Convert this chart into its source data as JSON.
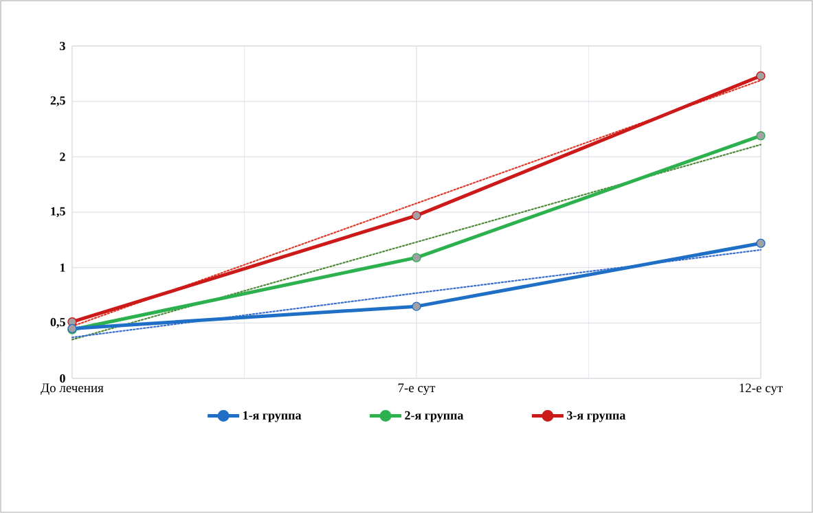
{
  "chart_data": {
    "type": "line",
    "categories": [
      "До лечения",
      "7-е сут",
      "12-е сут"
    ],
    "ylim": [
      0,
      3
    ],
    "yticks": [
      0,
      {
        "value": 0.5,
        "label": "0,5"
      },
      1,
      {
        "value": 1.5,
        "label": "1,5"
      },
      2,
      {
        "value": 2.5,
        "label": "2,5"
      },
      3
    ],
    "grid": true,
    "legend": "bottom",
    "marker": "circle",
    "line_style": "solid",
    "series": [
      {
        "name": "1-я группа",
        "color": "#1f6fc6",
        "values": [
          0.45,
          0.65,
          1.22
        ]
      },
      {
        "name": "2-я группа",
        "color": "#2db14f",
        "values": [
          0.44,
          1.09,
          2.19
        ]
      },
      {
        "name": "3-я группа",
        "color": "#cc1a1a",
        "values": [
          0.51,
          1.47,
          2.73
        ]
      },
      {
        "color": "#3a6fd0",
        "values": [
          0.37,
          0.77,
          1.16
        ],
        "line_style": "dotted",
        "marker": "none"
      },
      {
        "color": "#4f8a3a",
        "values": [
          0.35,
          1.23,
          2.11
        ],
        "line_style": "dotted",
        "marker": "none"
      },
      {
        "color": "#e03a2a",
        "values": [
          0.47,
          1.58,
          2.69
        ],
        "line_style": "dotted",
        "marker": "none"
      }
    ]
  }
}
